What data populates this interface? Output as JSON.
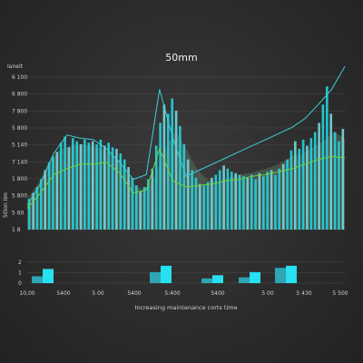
{
  "chart_data": {
    "type": "bar",
    "title": "50mm",
    "xlabel": "Increasing maintenance corts time",
    "ylabel": "50ion iim",
    "y_top_label": "Ianeit",
    "main_panel": {
      "y_ticks": [
        "6 100",
        "6 800",
        "7 800",
        "5 800",
        "5 140",
        "7 140",
        "1 800",
        "5 800",
        "5 60",
        "1 8"
      ],
      "ylim": [
        0,
        10
      ],
      "bars": [
        {
          "h": 2.0
        },
        {
          "h": 2.4
        },
        {
          "h": 2.8
        },
        {
          "h": 3.3
        },
        {
          "h": 3.9
        },
        {
          "h": 4.4
        },
        {
          "h": 4.8
        },
        {
          "h": 5.1
        },
        {
          "h": 5.7
        },
        {
          "h": 6.1
        },
        {
          "h": 5.4
        },
        {
          "h": 6.0
        },
        {
          "h": 5.8
        },
        {
          "h": 5.6
        },
        {
          "h": 5.9
        },
        {
          "h": 5.7
        },
        {
          "h": 5.8
        },
        {
          "h": 5.6
        },
        {
          "h": 5.9
        },
        {
          "h": 5.5
        },
        {
          "h": 5.7
        },
        {
          "h": 5.4
        },
        {
          "h": 5.3
        },
        {
          "h": 5.0
        },
        {
          "h": 4.6
        },
        {
          "h": 4.1
        },
        {
          "h": 3.4
        },
        {
          "h": 2.9
        },
        {
          "h": 2.5
        },
        {
          "h": 2.8
        },
        {
          "h": 3.3
        },
        {
          "h": 4.0
        },
        {
          "h": 5.5
        },
        {
          "h": 7.0
        },
        {
          "h": 8.2
        },
        {
          "h": 7.6
        },
        {
          "h": 8.6
        },
        {
          "h": 7.8
        },
        {
          "h": 6.8
        },
        {
          "h": 5.6
        },
        {
          "h": 4.6
        },
        {
          "h": 3.9
        },
        {
          "h": 3.4
        },
        {
          "h": 3.0
        },
        {
          "h": 2.9
        },
        {
          "h": 3.1
        },
        {
          "h": 3.4
        },
        {
          "h": 3.6
        },
        {
          "h": 3.9
        },
        {
          "h": 4.2
        },
        {
          "h": 4.0
        },
        {
          "h": 3.8
        },
        {
          "h": 3.7
        },
        {
          "h": 3.6
        },
        {
          "h": 3.5
        },
        {
          "h": 3.4
        },
        {
          "h": 3.6
        },
        {
          "h": 3.3
        },
        {
          "h": 3.7
        },
        {
          "h": 3.5
        },
        {
          "h": 3.8
        },
        {
          "h": 3.9
        },
        {
          "h": 3.6
        },
        {
          "h": 4.0
        },
        {
          "h": 4.3
        },
        {
          "h": 4.6
        },
        {
          "h": 5.2
        },
        {
          "h": 5.8
        },
        {
          "h": 5.3
        },
        {
          "h": 5.9
        },
        {
          "h": 5.5
        },
        {
          "h": 6.0
        },
        {
          "h": 6.4
        },
        {
          "h": 7.0
        },
        {
          "h": 8.2
        },
        {
          "h": 9.4
        },
        {
          "h": 7.6
        },
        {
          "h": 6.4
        },
        {
          "h": 5.8
        },
        {
          "h": 6.6
        }
      ],
      "shaded_area": [
        2.0,
        3.0,
        4.4,
        5.2,
        5.5,
        5.6,
        5.5,
        5.3,
        5.0,
        4.2,
        3.0,
        2.6,
        3.4,
        5.2,
        6.5,
        5.3,
        4.0,
        3.3,
        3.1,
        3.4,
        3.6,
        3.7,
        3.9,
        4.1,
        4.4,
        4.8,
        5.0,
        5.4,
        5.8,
        6.4,
        6.0
      ],
      "outline_line": [
        1.6,
        3.0,
        5.0,
        6.2,
        6.0,
        5.9,
        5.3,
        4.4,
        3.3,
        3.6,
        9.2,
        6.0,
        3.5,
        3.9,
        4.3,
        4.7,
        5.1,
        5.5,
        5.9,
        6.3,
        6.7,
        7.3,
        8.2,
        9.2,
        10.7
      ],
      "lower_line": [
        1.4,
        2.4,
        3.6,
        4.0,
        4.3,
        4.3,
        4.4,
        3.7,
        2.4,
        2.6,
        5.3,
        3.2,
        2.8,
        2.9,
        3.0,
        3.2,
        3.3,
        3.5,
        3.6,
        3.8,
        4.0,
        4.3,
        4.6,
        4.8,
        4.7
      ]
    },
    "lower_panel": {
      "y_ticks": [
        "2",
        "1",
        "0"
      ],
      "ylim": [
        0,
        2.5
      ],
      "groups": [
        {
          "a": 0.65,
          "b": 1.35
        },
        {
          "a": 1.05,
          "b": 1.65
        },
        {
          "a": 0.45,
          "b": 0.75
        },
        {
          "a": 0.55,
          "b": 1.05
        },
        {
          "a": 1.45,
          "b": 1.65
        }
      ]
    },
    "x_ticks": [
      "10,00",
      "5400",
      "5 00",
      "5400",
      "5:400",
      "5400",
      "5 00",
      "5 430",
      "5 500"
    ],
    "colors": {
      "bar": "#22d3e0",
      "bar_soft": "#7ad6dc",
      "outline": "#3ad0da",
      "lower": "#6fd23a",
      "area": "#5a6b5a",
      "lower_bar_a": "#2fa5b5",
      "lower_bar_b": "#27e0f0"
    }
  }
}
